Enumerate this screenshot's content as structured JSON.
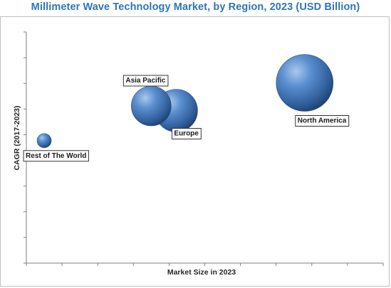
{
  "chart_data": {
    "type": "bubble",
    "title": "Millimeter Wave Technology Market, by Region, 2023 (USD Billion)",
    "xlabel": "Market Size in 2023",
    "ylabel": "CAGR (2017-2023)",
    "xlim": [
      0,
      100
    ],
    "ylim": [
      0,
      100
    ],
    "grid": false,
    "legend": "none",
    "bubble_color": "#3d6fae",
    "points": [
      {
        "label": "North America",
        "x": 78,
        "y": 78,
        "size": 40
      },
      {
        "label": "Europe",
        "x": 42,
        "y": 66,
        "size": 30
      },
      {
        "label": "Asia Pacific",
        "x": 35,
        "y": 68,
        "size": 28
      },
      {
        "label": "Rest of The World",
        "x": 5,
        "y": 53,
        "size": 10
      }
    ]
  }
}
